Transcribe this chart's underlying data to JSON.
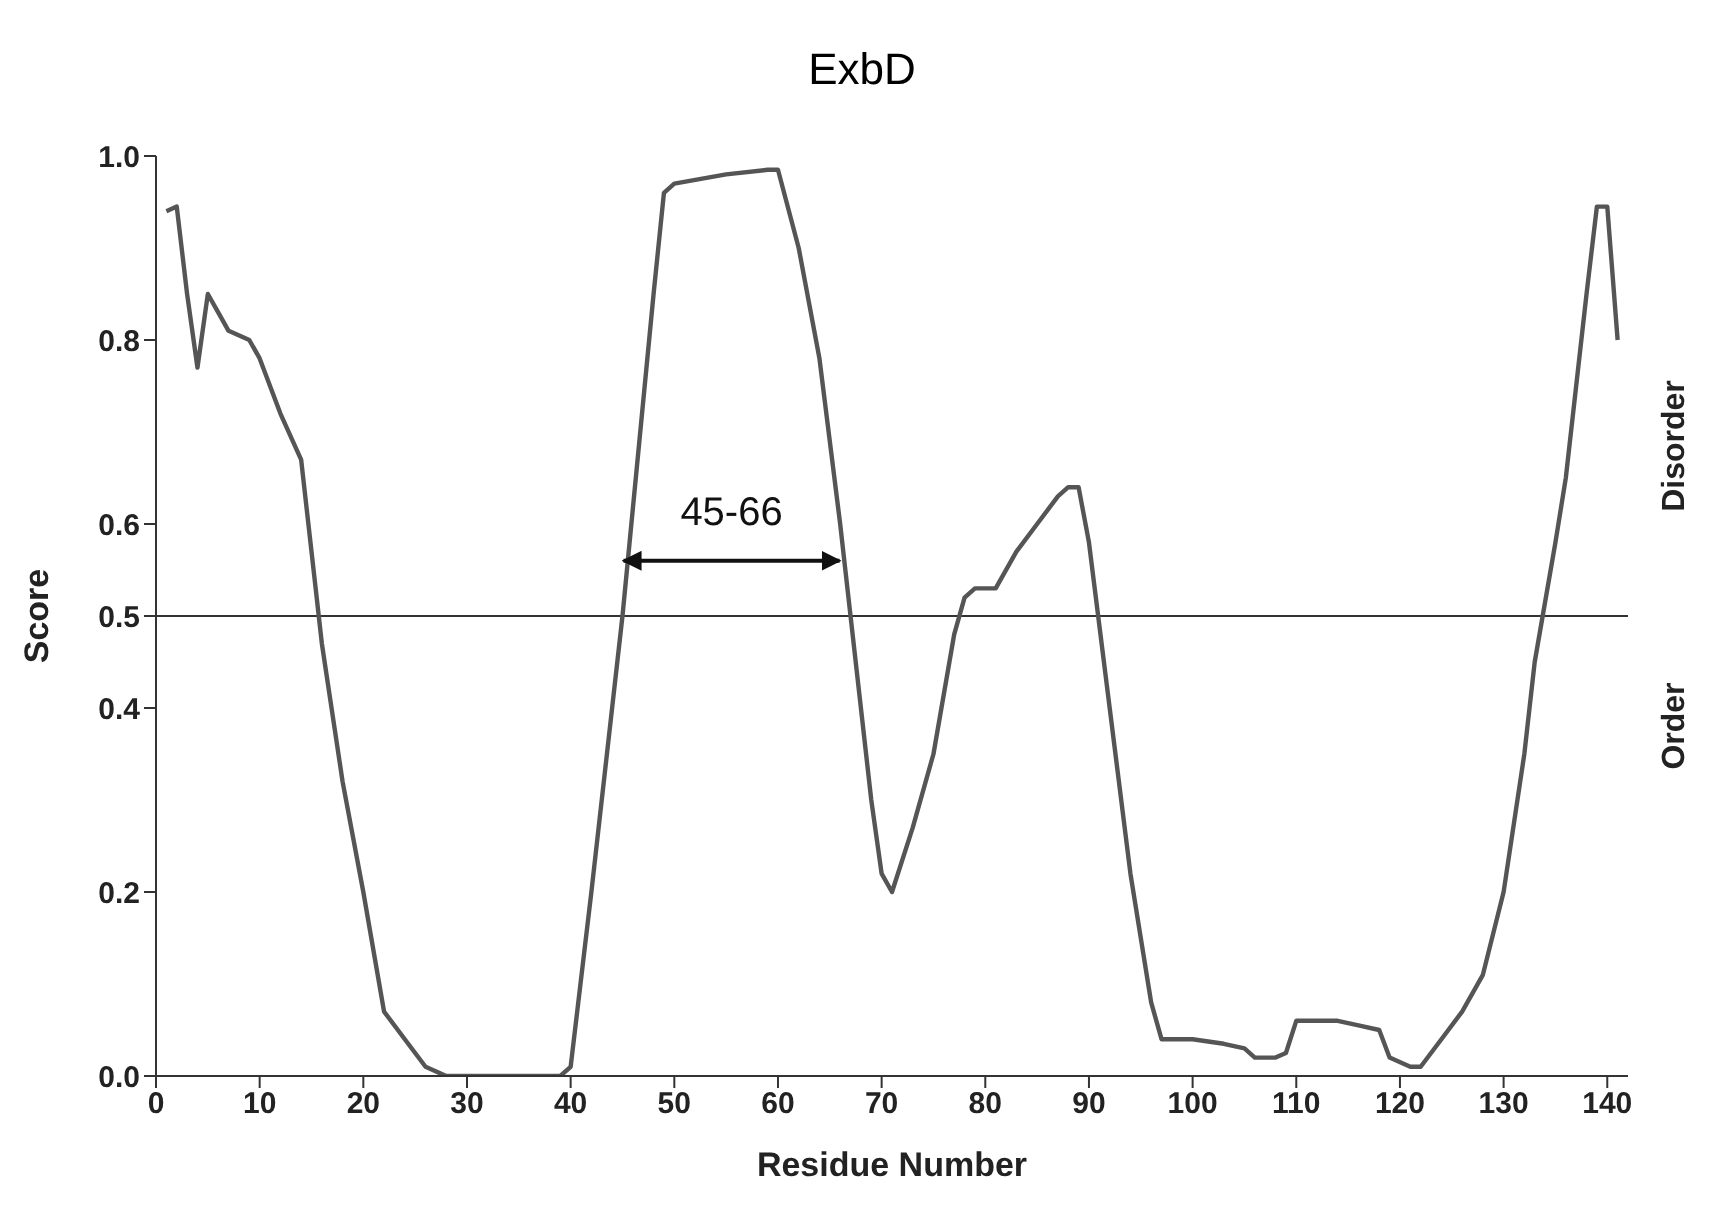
{
  "chart_data": {
    "type": "line",
    "title": "ExbD",
    "xlabel": "Residue Number",
    "ylabel": "Score",
    "x": [
      1,
      2,
      3,
      4,
      5,
      6,
      7,
      9,
      10,
      12,
      14,
      15,
      16,
      18,
      20,
      22,
      24,
      26,
      28,
      30,
      35,
      39,
      40,
      42,
      45,
      48,
      49,
      50,
      55,
      59,
      60,
      62,
      64,
      66,
      67,
      69,
      70,
      71,
      73,
      75,
      77,
      78,
      79,
      81,
      83,
      85,
      87,
      88,
      89,
      90,
      92,
      94,
      96,
      97,
      100,
      103,
      105,
      106,
      108,
      109,
      110,
      114,
      116,
      118,
      119,
      121,
      122,
      124,
      126,
      128,
      130,
      132,
      133,
      135,
      136,
      137,
      138,
      139,
      140,
      141
    ],
    "series": [
      {
        "color": "#555555",
        "values": [
          0.94,
          0.945,
          0.85,
          0.77,
          0.85,
          0.83,
          0.81,
          0.8,
          0.78,
          0.72,
          0.67,
          0.57,
          0.47,
          0.32,
          0.2,
          0.07,
          0.04,
          0.01,
          0,
          0,
          0,
          0,
          0.01,
          0.2,
          0.5,
          0.85,
          0.96,
          0.97,
          0.98,
          0.985,
          0.985,
          0.9,
          0.78,
          0.6,
          0.5,
          0.3,
          0.22,
          0.2,
          0.27,
          0.35,
          0.48,
          0.52,
          0.53,
          0.53,
          0.57,
          0.6,
          0.63,
          0.64,
          0.64,
          0.58,
          0.4,
          0.22,
          0.08,
          0.04,
          0.04,
          0.035,
          0.03,
          0.02,
          0.02,
          0.025,
          0.06,
          0.06,
          0.055,
          0.05,
          0.02,
          0.01,
          0.01,
          0.04,
          0.07,
          0.11,
          0.2,
          0.35,
          0.45,
          0.58,
          0.65,
          0.75,
          0.85,
          0.945,
          0.945,
          0.8
        ]
      }
    ],
    "xlim": [
      0,
      142
    ],
    "xticks": [
      0,
      10,
      20,
      30,
      40,
      50,
      60,
      70,
      80,
      90,
      100,
      110,
      120,
      130,
      140
    ],
    "ylim": [
      0,
      1
    ],
    "yticks": [
      {
        "value": 0,
        "label": "0.0"
      },
      {
        "value": 0.2,
        "label": "0.2"
      },
      {
        "value": 0.4,
        "label": "0.4"
      },
      {
        "value": 0.5,
        "label": "0.5"
      },
      {
        "value": 0.6,
        "label": "0.6"
      },
      {
        "value": 0.8,
        "label": "0.8"
      },
      {
        "value": 1,
        "label": "1.0"
      }
    ],
    "ref_lines": [
      {
        "axis": "y",
        "value": 0.5,
        "color": "#333333"
      }
    ],
    "annotations": [
      "Disorder",
      "Order",
      "45-66"
    ],
    "grid": false,
    "legend": false,
    "marker": "none",
    "line_style": "solid"
  }
}
